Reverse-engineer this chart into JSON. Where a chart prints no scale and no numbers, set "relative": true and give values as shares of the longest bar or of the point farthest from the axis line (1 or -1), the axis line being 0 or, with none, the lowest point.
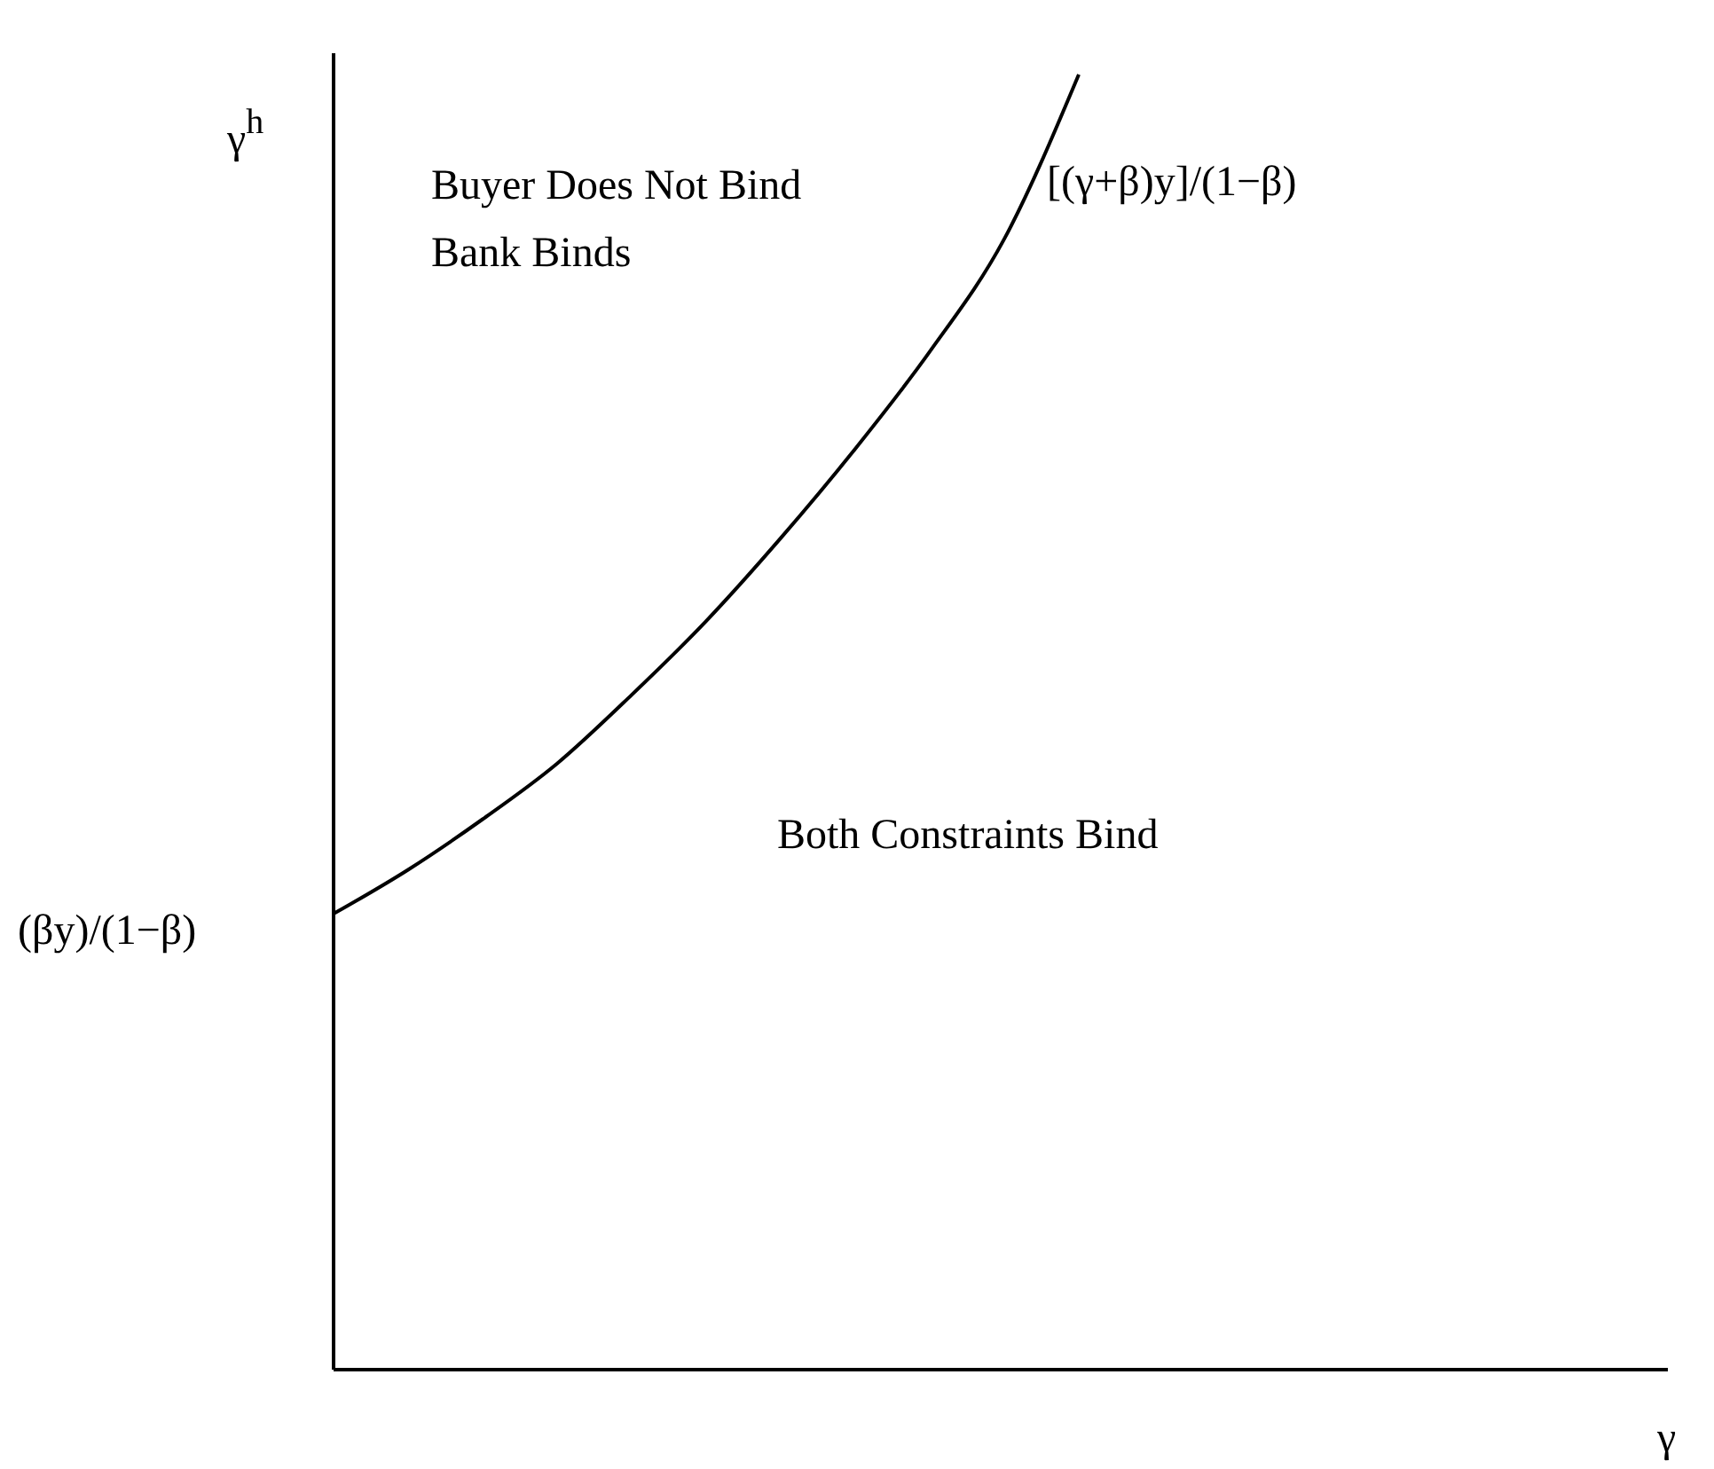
{
  "chart_data": {
    "type": "line",
    "relative": true,
    "xlabel": "γ",
    "ylabel": "γ$^{h}$",
    "categories": [
      null,
      null,
      null,
      null,
      null,
      null,
      null,
      null,
      null,
      null,
      null,
      null,
      null,
      null,
      null,
      null,
      null,
      null,
      null
    ],
    "series": [
      {
        "color": "#000000",
        "values": [
          0.352,
          0.386,
          0.425,
          0.468,
          0.521,
          0.578,
          0.642,
          0.711,
          0.786,
          0.873,
          1,
          null,
          null,
          null,
          null,
          null,
          null,
          null,
          null
        ]
      }
    ],
    "annotations": [
      "Buyer Does Not Bind",
      "Bank Binds",
      "[(γ+β)y]/(1−β)",
      "Both Constraints Bind",
      "(βy)/(1−β)"
    ],
    "line_style": "solid"
  }
}
